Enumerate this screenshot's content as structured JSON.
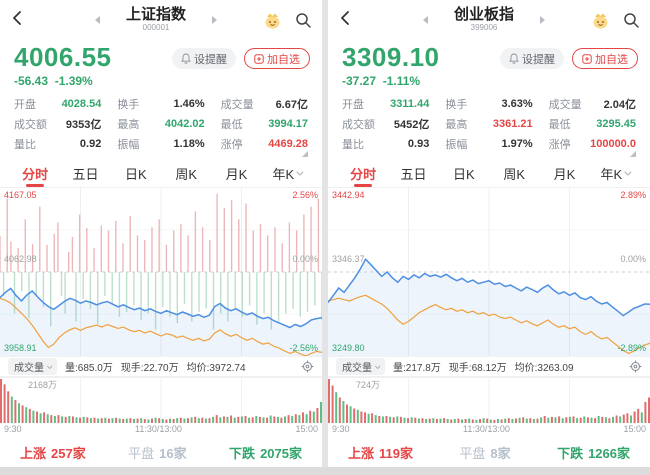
{
  "accent": {
    "up_red": "#e54545",
    "down_green": "#31a56c",
    "neutral": "#333333",
    "muted": "#9aa0a6",
    "price_line_blue": "#4d8fe2",
    "avg_line_orange": "#f0a03c"
  },
  "left": {
    "nav": {
      "title": "上证指数",
      "code": "000001"
    },
    "price": {
      "value": "4006.55",
      "change": "-56.43",
      "change_pct": "-1.39%",
      "color": "#31a56c"
    },
    "actions": {
      "alert": "设提醒",
      "watch": "加自选"
    },
    "stats": [
      {
        "label": "开盘",
        "value": "4028.54",
        "color": "#31a56c"
      },
      {
        "label": "换手",
        "value": "1.46%",
        "color": "#333333"
      },
      {
        "label": "成交量",
        "value": "6.67亿",
        "color": "#333333"
      },
      {
        "label": "成交额",
        "value": "9353亿",
        "color": "#333333"
      },
      {
        "label": "最高",
        "value": "4042.02",
        "color": "#31a56c"
      },
      {
        "label": "最低",
        "value": "3994.17",
        "color": "#31a56c"
      },
      {
        "label": "量比",
        "value": "0.92",
        "color": "#333333"
      },
      {
        "label": "振幅",
        "value": "1.18%",
        "color": "#333333"
      },
      {
        "label": "涨停",
        "value": "4469.28",
        "color": "#e54545"
      }
    ],
    "tabs": [
      "分时",
      "五日",
      "日K",
      "周K",
      "月K",
      "年K"
    ],
    "chart_labels": {
      "high": "4167.05",
      "low": "3958.91",
      "prev": "4062.98",
      "pct_high": "2.56%",
      "pct_mid": "0.00%",
      "pct_low": "-2.56%"
    },
    "info": {
      "indicator": "成交量",
      "vol": "量:685.0万",
      "cur": "现手:22.70万",
      "avg": "均价:3972.74"
    },
    "volume_max_label": "2168万",
    "axis": [
      "9:30",
      "11:30/13:00",
      "15:00"
    ],
    "breadth": {
      "up_label": "上涨",
      "up": "257家",
      "flat_label": "平盘",
      "flat": "16家",
      "down_label": "下跌",
      "down": "2075家"
    }
  },
  "right": {
    "nav": {
      "title": "创业板指",
      "code": "399006"
    },
    "price": {
      "value": "3309.10",
      "change": "-37.27",
      "change_pct": "-1.11%",
      "color": "#31a56c"
    },
    "actions": {
      "alert": "设提醒",
      "watch": "加自选"
    },
    "stats": [
      {
        "label": "开盘",
        "value": "3311.44",
        "color": "#31a56c"
      },
      {
        "label": "换手",
        "value": "3.63%",
        "color": "#333333"
      },
      {
        "label": "成交量",
        "value": "2.04亿",
        "color": "#333333"
      },
      {
        "label": "成交额",
        "value": "5452亿",
        "color": "#333333"
      },
      {
        "label": "最高",
        "value": "3361.21",
        "color": "#e54545"
      },
      {
        "label": "最低",
        "value": "3295.45",
        "color": "#31a56c"
      },
      {
        "label": "量比",
        "value": "0.93",
        "color": "#333333"
      },
      {
        "label": "振幅",
        "value": "1.97%",
        "color": "#333333"
      },
      {
        "label": "涨停",
        "value": "100000.0",
        "color": "#e54545"
      }
    ],
    "tabs": [
      "分时",
      "五日",
      "日K",
      "周K",
      "月K",
      "年K"
    ],
    "chart_labels": {
      "high": "3442.94",
      "low": "3249.80",
      "prev": "3346.37",
      "pct_high": "2.89%",
      "pct_mid": "0.00%",
      "pct_low": "-2.89%"
    },
    "info": {
      "indicator": "成交量",
      "vol": "量:217.8万",
      "cur": "现手:68.12万",
      "avg": "均价:3263.09"
    },
    "volume_max_label": "724万",
    "axis": [
      "9:30",
      "11:30/13:00",
      "15:00"
    ],
    "breadth": {
      "up_label": "上涨",
      "up": "119家",
      "flat_label": "平盘",
      "flat": "8家",
      "down_label": "下跌",
      "down": "1266家"
    }
  },
  "chart_data": {
    "left_intraday": {
      "type": "line",
      "range_pct": 2.56,
      "prev_close": 4062.98,
      "fill_color": "rgba(77,143,226,0.10)",
      "bar_up_color": "#e28c8c",
      "bar_down_color": "#94cdaa",
      "series": [
        {
          "name": "price",
          "color": "#4d8fe2",
          "values": [
            -0.78,
            -0.62,
            -0.5,
            -0.72,
            -0.88,
            -0.7,
            -0.58,
            -0.76,
            -0.92,
            -1.05,
            -1.14,
            -1.02,
            -0.9,
            -0.8,
            -0.86,
            -0.95,
            -0.88,
            -0.93,
            -1.0,
            -0.94,
            -0.9,
            -0.98,
            -1.06,
            -1.0,
            -1.08,
            -1.15,
            -1.1,
            -1.18,
            -1.12,
            -1.2,
            -1.26,
            -1.18,
            -1.24,
            -1.3,
            -1.22,
            -1.28,
            -1.35,
            -1.3,
            -1.38,
            -1.32,
            -1.05,
            -0.96,
            -1.1,
            -1.18,
            -1.12,
            -1.22,
            -1.3,
            -1.25,
            -1.35,
            -1.42,
            -1.38,
            -1.48,
            -1.55,
            -1.62,
            -1.69,
            -1.6,
            -1.66,
            -1.58,
            -1.46,
            -1.42,
            -1.39
          ]
        },
        {
          "name": "avg",
          "color": "#f0a03c",
          "values": [
            -0.8,
            -0.86,
            -0.95,
            -1.1,
            -1.26,
            -1.42,
            -1.62,
            -1.86,
            -2.1,
            -2.3,
            -2.2,
            -2.0,
            -1.86,
            -1.76,
            -1.7,
            -1.78,
            -1.7,
            -1.66,
            -1.62,
            -1.68,
            -1.6,
            -1.66,
            -1.72,
            -1.68,
            -1.76,
            -1.82,
            -1.78,
            -1.86,
            -1.8,
            -1.88,
            -1.95,
            -1.88,
            -1.92,
            -2.0,
            -1.95,
            -2.02,
            -2.08,
            -2.02,
            -2.1,
            -2.05,
            -1.86,
            -1.76,
            -1.88,
            -1.96,
            -1.9,
            -2.0,
            -2.08,
            -2.02,
            -2.12,
            -2.2,
            -2.16,
            -2.26,
            -2.32,
            -2.4,
            -2.48,
            -2.42,
            -2.5,
            -2.56,
            -2.48,
            -2.42,
            -2.45
          ]
        }
      ],
      "updown_bars": [
        0.45,
        -0.3,
        0.92,
        0.38,
        -0.52,
        0.3,
        -0.24,
        0.66,
        -0.58,
        0.35,
        -0.3,
        0.82,
        -0.44,
        0.34,
        -0.68,
        0.48,
        0.62,
        -0.3,
        -0.52,
        0.25,
        0.44,
        -0.62,
        0.72,
        -0.34,
        0.55,
        -0.46,
        0.3,
        -0.66,
        0.58,
        -0.3,
        0.52,
        -0.4,
        0.64,
        -0.56,
        0.36,
        -0.5,
        0.7,
        -0.42,
        0.46,
        -0.6,
        0.4,
        -0.52,
        0.56,
        -0.72,
        0.66,
        -0.44,
        0.34,
        -0.56,
        0.52,
        -0.64,
        0.6,
        -0.4,
        0.46,
        -0.62,
        0.76,
        -0.5,
        0.56,
        -0.46,
        0.4,
        -0.72,
        0.98,
        -0.52,
        0.8,
        -0.62,
        0.9,
        -0.46,
        0.66,
        -0.56,
        0.86,
        -0.42,
        0.52,
        -0.66,
        0.6,
        -0.52,
        0.46,
        -0.72,
        0.56,
        -0.62,
        0.36,
        -0.52,
        0.62,
        -0.46,
        0.52,
        -0.56,
        0.72,
        -0.5,
        0.82,
        -0.42,
        0.92,
        -0.6
      ]
    },
    "left_volume": {
      "type": "bar",
      "up_color": "#e06c6c",
      "down_color": "#5fbd85",
      "values": [
        1.0,
        0.88,
        0.72,
        -0.6,
        0.52,
        -0.45,
        0.4,
        -0.36,
        0.32,
        -0.28,
        0.26,
        -0.22,
        0.24,
        -0.2,
        0.18,
        -0.16,
        0.18,
        -0.15,
        0.14,
        -0.16,
        0.15,
        -0.13,
        0.12,
        -0.14,
        0.13,
        -0.11,
        0.12,
        -0.1,
        0.11,
        -0.12,
        0.1,
        -0.11,
        0.12,
        -0.1,
        0.09,
        -0.1,
        0.11,
        -0.09,
        0.1,
        -0.11,
        0.09,
        -0.08,
        0.1,
        -0.12,
        0.11,
        -0.09,
        0.08,
        -0.1,
        0.09,
        -0.11,
        0.12,
        -0.1,
        0.11,
        -0.13,
        0.14,
        -0.11,
        0.12,
        -0.1,
        0.11,
        -0.14,
        0.18,
        -0.13,
        0.15,
        -0.14,
        0.17,
        -0.12,
        0.14,
        -0.15,
        0.16,
        -0.12,
        0.13,
        -0.16,
        0.14,
        -0.13,
        0.12,
        -0.17,
        0.15,
        -0.14,
        0.12,
        -0.15,
        0.18,
        -0.16,
        0.2,
        -0.18,
        0.24,
        -0.2,
        0.28,
        -0.26,
        0.34,
        -0.48
      ]
    },
    "right_intraday": {
      "type": "line",
      "range_pct": 2.89,
      "prev_close": 3346.37,
      "fill_color": "rgba(77,143,226,0.10)",
      "series": [
        {
          "name": "price",
          "color": "#4d8fe2",
          "values": [
            -1.05,
            -0.8,
            -0.55,
            -0.7,
            -0.45,
            -0.2,
            0.1,
            0.44,
            0.25,
            0.05,
            -0.15,
            0.0,
            -0.2,
            -0.35,
            -0.15,
            -0.25,
            -0.1,
            -0.2,
            -0.05,
            -0.15,
            -0.1,
            -0.18,
            -0.08,
            -0.2,
            -0.3,
            -0.22,
            -0.35,
            -0.28,
            -0.4,
            -0.35,
            -0.3,
            -0.42,
            -0.38,
            -0.5,
            -0.45,
            -0.55,
            -0.65,
            -0.52,
            -0.6,
            -0.7,
            -0.55,
            -0.45,
            -0.62,
            -0.75,
            -0.68,
            -0.8,
            -0.72,
            -0.88,
            -0.95,
            -0.85,
            -1.0,
            -1.1,
            -1.05,
            -1.2,
            -1.35,
            -1.5,
            -1.38,
            -1.25,
            -1.18,
            -1.1,
            -1.11
          ]
        },
        {
          "name": "avg",
          "color": "#f0a03c",
          "values": [
            -1.0,
            -0.95,
            -0.9,
            -0.95,
            -1.0,
            -0.92,
            -0.85,
            -0.8,
            -0.9,
            -1.0,
            -1.1,
            -1.25,
            -1.45,
            -1.65,
            -1.8,
            -1.7,
            -1.55,
            -1.4,
            -1.3,
            -1.2,
            -1.12,
            -1.22,
            -1.3,
            -1.25,
            -1.35,
            -1.3,
            -1.4,
            -1.35,
            -1.45,
            -1.4,
            -1.5,
            -1.45,
            -1.55,
            -1.6,
            -1.55,
            -1.65,
            -1.75,
            -1.68,
            -1.78,
            -1.85,
            -1.75,
            -1.65,
            -1.8,
            -1.9,
            -1.85,
            -1.95,
            -1.9,
            -2.05,
            -2.15,
            -2.05,
            -2.2,
            -2.3,
            -2.25,
            -2.4,
            -2.55,
            -2.7,
            -2.8,
            -2.72,
            -2.6,
            -2.52,
            -2.45
          ]
        }
      ]
    },
    "right_volume": {
      "type": "bar",
      "up_color": "#e06c6c",
      "down_color": "#5fbd85",
      "values": [
        1.0,
        0.85,
        -0.7,
        0.58,
        -0.5,
        0.42,
        -0.38,
        0.33,
        -0.3,
        0.26,
        0.24,
        -0.21,
        0.22,
        -0.18,
        0.16,
        -0.15,
        0.16,
        -0.14,
        0.13,
        -0.15,
        0.14,
        -0.12,
        0.11,
        -0.13,
        0.12,
        -0.1,
        0.11,
        -0.09,
        0.1,
        -0.11,
        0.09,
        -0.1,
        0.11,
        -0.09,
        0.08,
        -0.09,
        0.1,
        -0.08,
        0.09,
        -0.1,
        0.08,
        -0.07,
        0.09,
        -0.11,
        0.1,
        -0.08,
        0.07,
        -0.09,
        0.08,
        -0.1,
        0.11,
        -0.09,
        0.1,
        -0.12,
        0.13,
        -0.1,
        0.11,
        -0.09,
        0.1,
        -0.13,
        0.16,
        -0.12,
        0.14,
        -0.13,
        0.15,
        -0.11,
        0.13,
        -0.14,
        0.15,
        -0.11,
        0.12,
        -0.15,
        0.13,
        -0.12,
        0.11,
        -0.16,
        0.14,
        -0.13,
        0.11,
        -0.14,
        0.17,
        -0.15,
        0.19,
        0.22,
        -0.17,
        0.26,
        0.32,
        -0.24,
        0.48,
        0.58
      ]
    }
  }
}
